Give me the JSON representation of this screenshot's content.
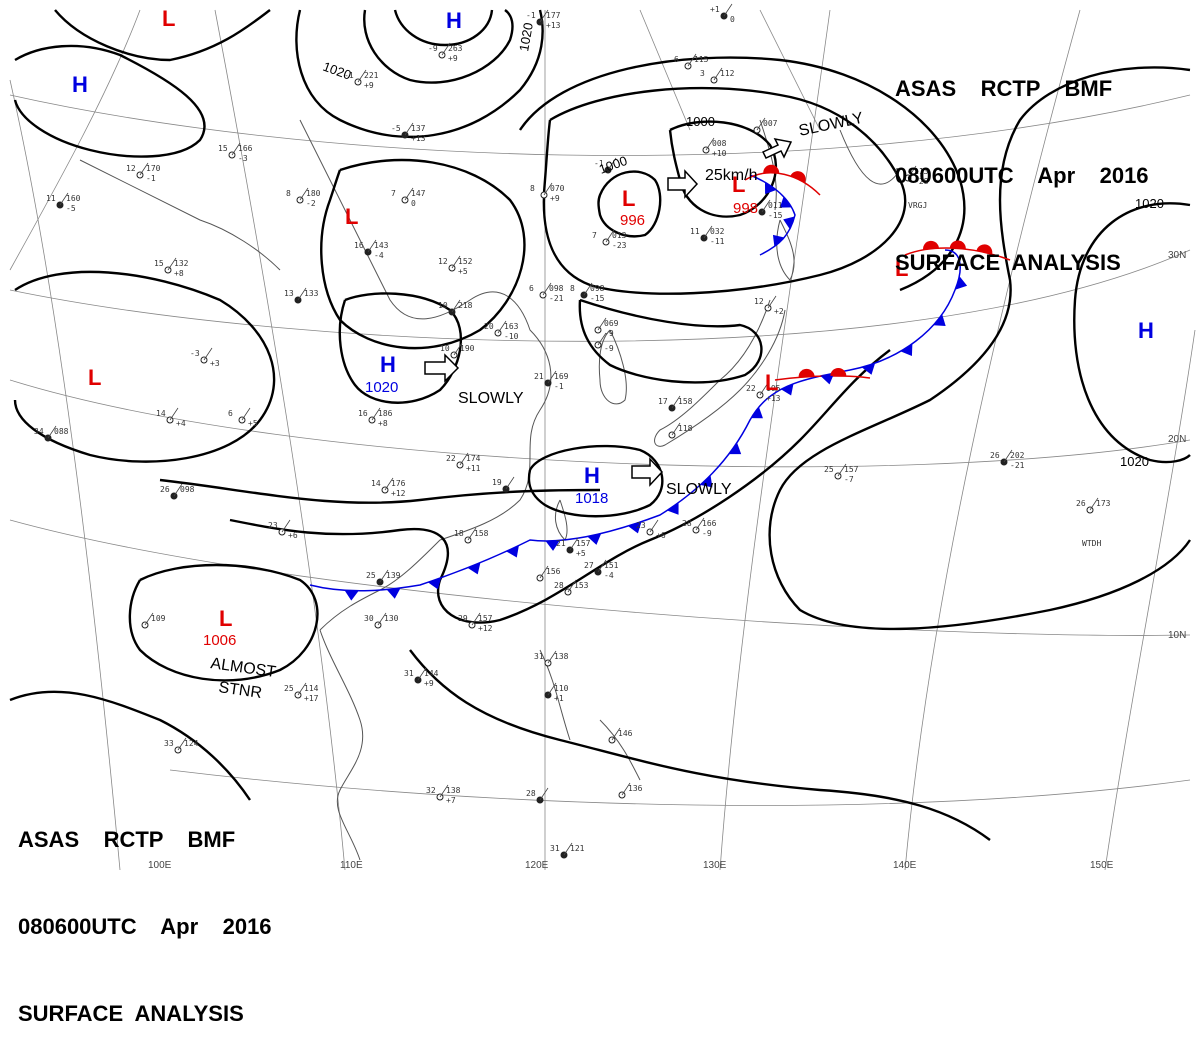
{
  "header": {
    "lines": [
      "ASAS    RCTP    BMF",
      "080600UTC    Apr    2016",
      "SURFACE  ANALYSIS"
    ]
  },
  "colors": {
    "low": "#e00000",
    "high": "#0000e0",
    "isobar": "#000000",
    "coast": "#555555",
    "grid": "#888888",
    "cold_front": "#0000e0",
    "warm_front": "#e00000"
  },
  "systems": [
    {
      "id": "low-nw",
      "type": "L",
      "label": ""
    },
    {
      "id": "high-nw",
      "type": "H",
      "label": ""
    },
    {
      "id": "high-top",
      "type": "H",
      "label": ""
    },
    {
      "id": "low-west",
      "type": "L",
      "label": ""
    },
    {
      "id": "low-mongolia",
      "type": "L",
      "label": ""
    },
    {
      "id": "high-china",
      "type": "H",
      "label": "1020"
    },
    {
      "id": "low-north-a",
      "type": "L",
      "label": "996"
    },
    {
      "id": "low-north-b",
      "type": "L",
      "label": "998"
    },
    {
      "id": "low-east",
      "type": "L",
      "label": ""
    },
    {
      "id": "high-pacific",
      "type": "H",
      "label": ""
    },
    {
      "id": "high-taiwan",
      "type": "H",
      "label": "1018"
    },
    {
      "id": "low-south",
      "type": "L",
      "label": "1006"
    }
  ],
  "isobar_labels": [
    "1020",
    "1020",
    "1000",
    "1000",
    "1020",
    "1020"
  ],
  "notes": [
    "SLOWLY",
    "SLOWLY",
    "SLOWLY",
    "25km/h",
    "ALMOST",
    "STNR"
  ],
  "lat_labels": [
    "30N",
    "20N",
    "10N"
  ],
  "lon_labels": [
    "100E",
    "110E",
    "120E",
    "130E",
    "140E",
    "150E"
  ],
  "stations": [
    {
      "name": "station-plot",
      "t": "-1",
      "p": "177",
      "d": "+13"
    },
    {
      "name": "station-plot",
      "t": "-9",
      "p": "263",
      "d": "+9"
    },
    {
      "name": "station-plot",
      "t": "-1",
      "p": "221",
      "d": "+9"
    },
    {
      "name": "station-plot",
      "t": "-5",
      "p": "137",
      "d": "+13"
    },
    {
      "name": "station-plot",
      "t": "15",
      "p": "166",
      "d": "-3"
    },
    {
      "name": "station-plot",
      "t": "12",
      "p": "170",
      "d": "-1"
    },
    {
      "name": "station-plot",
      "t": "11",
      "p": "160",
      "d": "-5"
    },
    {
      "name": "station-plot",
      "t": "8",
      "p": "180",
      "d": "-2"
    },
    {
      "name": "station-plot",
      "t": "7",
      "p": "147",
      "d": "0"
    },
    {
      "name": "station-plot",
      "t": "16",
      "p": "143",
      "d": "-4"
    },
    {
      "name": "station-plot",
      "t": "12",
      "p": "152",
      "d": "+5"
    },
    {
      "name": "station-plot",
      "t": "15",
      "p": "132",
      "d": "+8"
    },
    {
      "name": "station-plot",
      "t": "13",
      "p": "133",
      "d": ""
    },
    {
      "name": "station-plot",
      "t": "-3",
      "p": "",
      "d": "+3"
    },
    {
      "name": "station-plot",
      "t": "14",
      "p": "",
      "d": "+4"
    },
    {
      "name": "station-plot",
      "t": "34",
      "p": "088",
      "d": ""
    },
    {
      "name": "station-plot",
      "t": "6",
      "p": "",
      "d": "+5"
    },
    {
      "name": "station-plot",
      "t": "16",
      "p": "186",
      "d": "+8"
    },
    {
      "name": "station-plot",
      "t": "10",
      "p": "218",
      "d": ""
    },
    {
      "name": "station-plot",
      "t": "20",
      "p": "163",
      "d": "-10"
    },
    {
      "name": "station-plot",
      "t": "10",
      "p": "190",
      "d": ""
    },
    {
      "name": "station-plot",
      "t": "21",
      "p": "169",
      "d": "-1"
    },
    {
      "name": "station-plot",
      "t": "22",
      "p": "174",
      "d": "+11"
    },
    {
      "name": "station-plot",
      "t": "14",
      "p": "176",
      "d": "+12"
    },
    {
      "name": "station-plot",
      "t": "26",
      "p": "098",
      "d": ""
    },
    {
      "name": "station-plot",
      "t": "23",
      "p": "",
      "d": "+6"
    },
    {
      "name": "station-plot",
      "t": "18",
      "p": "158",
      "d": ""
    },
    {
      "name": "station-plot",
      "t": "25",
      "p": "139",
      "d": ""
    },
    {
      "name": "station-plot",
      "t": "30",
      "p": "130",
      "d": ""
    },
    {
      "name": "station-plot",
      "t": "29",
      "p": "157",
      "d": "+12"
    },
    {
      "name": "station-plot",
      "t": "21",
      "p": "157",
      "d": "+5"
    },
    {
      "name": "station-plot",
      "t": "",
      "p": "156",
      "d": ""
    },
    {
      "name": "station-plot",
      "t": "28",
      "p": "153",
      "d": ""
    },
    {
      "name": "station-plot",
      "t": "27",
      "p": "151",
      "d": "-4"
    },
    {
      "name": "station-plot",
      "t": "23",
      "p": "",
      "d": "+6"
    },
    {
      "name": "station-plot",
      "t": "28",
      "p": "166",
      "d": "-9"
    },
    {
      "name": "station-plot",
      "t": "31",
      "p": "144",
      "d": "+9"
    },
    {
      "name": "station-plot",
      "t": "25",
      "p": "114",
      "d": "+17"
    },
    {
      "name": "station-plot",
      "t": "31",
      "p": "138",
      "d": ""
    },
    {
      "name": "station-plot",
      "t": "",
      "p": "110",
      "d": "+1"
    },
    {
      "name": "station-plot",
      "t": "33",
      "p": "124",
      "d": ""
    },
    {
      "name": "station-plot",
      "t": "32",
      "p": "138",
      "d": "+7"
    },
    {
      "name": "station-plot",
      "t": "28",
      "p": "",
      "d": ""
    },
    {
      "name": "station-plot",
      "t": "",
      "p": "146",
      "d": ""
    },
    {
      "name": "station-plot",
      "t": "",
      "p": "136",
      "d": ""
    },
    {
      "name": "station-plot",
      "t": "31",
      "p": "121",
      "d": ""
    },
    {
      "name": "station-plot",
      "t": "",
      "p": "109",
      "d": ""
    },
    {
      "name": "station-plot",
      "t": "8",
      "p": "070",
      "d": "+9"
    },
    {
      "name": "station-plot",
      "t": "-1",
      "p": "",
      "d": ""
    },
    {
      "name": "station-plot",
      "t": "7",
      "p": "013",
      "d": "-23"
    },
    {
      "name": "station-plot",
      "t": "6",
      "p": "098",
      "d": "-21"
    },
    {
      "name": "station-plot",
      "t": "8",
      "p": "098",
      "d": "-15"
    },
    {
      "name": "station-plot",
      "t": "",
      "p": "069",
      "d": "-9"
    },
    {
      "name": "station-plot",
      "t": "",
      "p": "",
      "d": "-9"
    },
    {
      "name": "station-plot",
      "t": "11",
      "p": "032",
      "d": "-11"
    },
    {
      "name": "station-plot",
      "t": "",
      "p": "008",
      "d": "+10"
    },
    {
      "name": "station-plot",
      "t": "",
      "p": "007",
      "d": ""
    },
    {
      "name": "station-plot",
      "t": "",
      "p": "011",
      "d": "-15"
    },
    {
      "name": "station-plot",
      "t": "6",
      "p": "115",
      "d": ""
    },
    {
      "name": "station-plot",
      "t": "3",
      "p": "112",
      "d": ""
    },
    {
      "name": "station-plot",
      "t": "+1",
      "p": "",
      "d": "0"
    },
    {
      "name": "station-plot",
      "t": "12",
      "p": "",
      "d": "+2"
    },
    {
      "name": "station-plot",
      "t": "22",
      "p": "105",
      "d": "+13"
    },
    {
      "name": "station-plot",
      "t": "17",
      "p": "158",
      "d": ""
    },
    {
      "name": "station-plot",
      "t": "",
      "p": "118",
      "d": ""
    },
    {
      "name": "station-plot",
      "t": "4",
      "p": "113",
      "d": "-28"
    },
    {
      "name": "station-plot",
      "t": "26",
      "p": "202",
      "d": "-21"
    },
    {
      "name": "station-plot",
      "t": "25",
      "p": "157",
      "d": "-7"
    },
    {
      "name": "station-plot",
      "t": "26",
      "p": "173",
      "d": ""
    },
    {
      "name": "station-plot",
      "t": "19",
      "p": "",
      "d": ""
    }
  ],
  "station_ids": [
    "VRGJ",
    "WTDH"
  ]
}
